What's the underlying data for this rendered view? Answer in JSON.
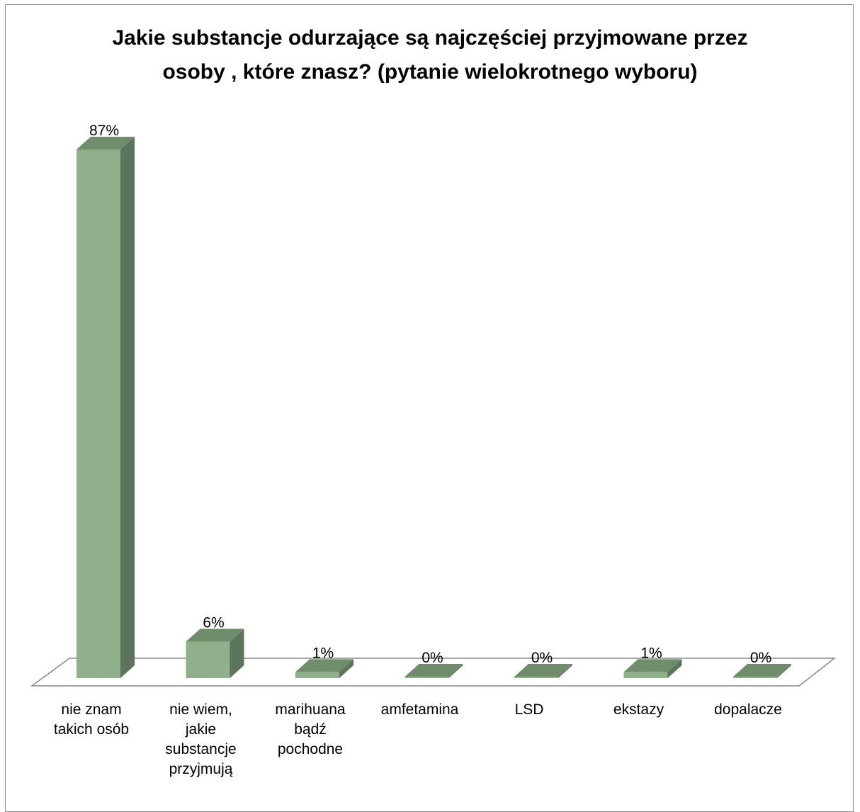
{
  "chart_data": {
    "type": "bar",
    "title_lines": [
      "Jakie substancje odurzające są najczęściej przyjmowane przez",
      "osoby , które znasz? (pytanie wielokrotnego wyboru)"
    ],
    "categories": [
      [
        "nie znam",
        "takich osób"
      ],
      [
        "nie wiem,",
        "jakie",
        "substancje",
        "przyjmują"
      ],
      [
        "marihuana",
        "bądź",
        "pochodne"
      ],
      [
        "amfetamina"
      ],
      [
        "LSD"
      ],
      [
        "ekstazy"
      ],
      [
        "dopalacze"
      ]
    ],
    "values": [
      87,
      6,
      1,
      0,
      0,
      1,
      0
    ],
    "data_labels": [
      "87%",
      "6%",
      "1%",
      "0%",
      "0%",
      "1%",
      "0%"
    ],
    "unit": "%",
    "ylim": [
      0,
      87
    ],
    "grid": false,
    "legend": "none",
    "colors": {
      "bar_front": "#8fb08a",
      "bar_side": "#5c745a",
      "bar_top": "#6f8c6b",
      "floor": "#888888"
    }
  }
}
